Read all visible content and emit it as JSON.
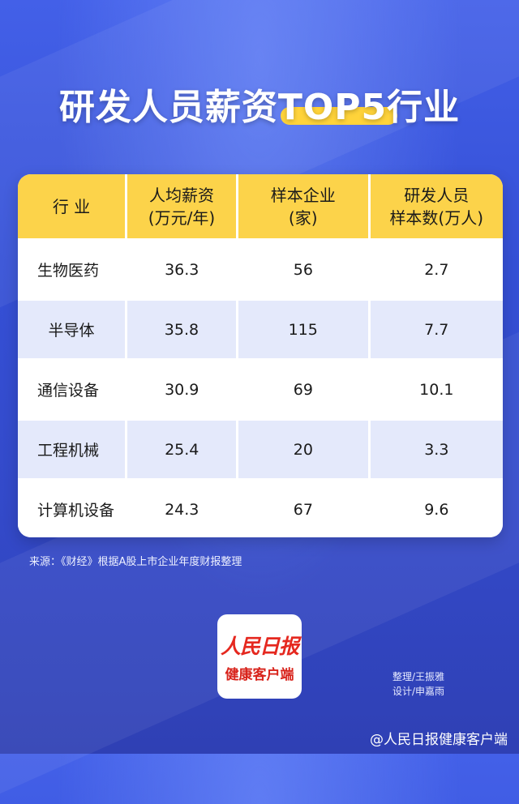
{
  "title": "研发人员薪资TOP5行业",
  "colors": {
    "background": "#3a52d8",
    "header": "#fcd34a",
    "row_alt": "#e4e9fb",
    "brand_red": "#e5281f"
  },
  "table": {
    "headers": [
      {
        "line1": "行 业",
        "line2": ""
      },
      {
        "line1": "人均薪资",
        "line2": "(万元/年)"
      },
      {
        "line1": "样本企业",
        "line2": "(家)"
      },
      {
        "line1": "研发人员",
        "line2": "样本数(万人)"
      }
    ],
    "rows": [
      [
        "生物医药",
        "36.3",
        "56",
        "2.7"
      ],
      [
        "半导体",
        "35.8",
        "115",
        "7.7"
      ],
      [
        "通信设备",
        "30.9",
        "69",
        "10.1"
      ],
      [
        "工程机械",
        "25.4",
        "20",
        "3.3"
      ],
      [
        "计算机设备",
        "24.3",
        "67",
        "9.6"
      ]
    ]
  },
  "source": "来源：《财经》根据A股上市企业年度财报整理",
  "logo": {
    "masthead": "人民日报",
    "subtitle": "健康客户端"
  },
  "credits": {
    "editor": "整理/王振雅",
    "designer": "设计/申嘉雨"
  },
  "watermark": "@人民日报健康客户端"
}
